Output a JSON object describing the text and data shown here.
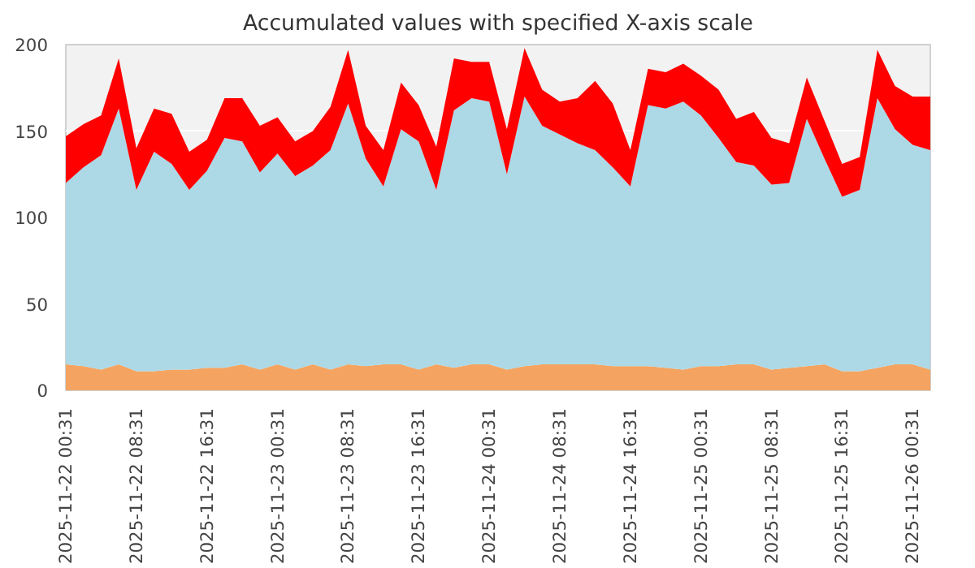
{
  "chart_data": {
    "type": "area",
    "stacked": true,
    "title": "Accumulated values with specified X-axis scale",
    "x": [
      "2025-11-22T00:31",
      "2025-11-22T02:31",
      "2025-11-22T04:31",
      "2025-11-22T06:31",
      "2025-11-22T08:31",
      "2025-11-22T10:31",
      "2025-11-22T12:31",
      "2025-11-22T14:31",
      "2025-11-22T16:31",
      "2025-11-22T18:31",
      "2025-11-22T20:31",
      "2025-11-22T22:31",
      "2025-11-23T00:31",
      "2025-11-23T02:31",
      "2025-11-23T04:31",
      "2025-11-23T06:31",
      "2025-11-23T08:31",
      "2025-11-23T10:31",
      "2025-11-23T12:31",
      "2025-11-23T14:31",
      "2025-11-23T16:31",
      "2025-11-23T18:31",
      "2025-11-23T20:31",
      "2025-11-23T22:31",
      "2025-11-24T00:31",
      "2025-11-24T02:31",
      "2025-11-24T04:31",
      "2025-11-24T06:31",
      "2025-11-24T08:31",
      "2025-11-24T10:31",
      "2025-11-24T12:31",
      "2025-11-24T14:31",
      "2025-11-24T16:31",
      "2025-11-24T18:31",
      "2025-11-24T20:31",
      "2025-11-24T22:31",
      "2025-11-25T00:31",
      "2025-11-25T02:31",
      "2025-11-25T04:31",
      "2025-11-25T06:31",
      "2025-11-25T08:31",
      "2025-11-25T10:31",
      "2025-11-25T12:31",
      "2025-11-25T14:31",
      "2025-11-25T16:31",
      "2025-11-25T18:31",
      "2025-11-25T20:31",
      "2025-11-25T22:31",
      "2025-11-26T00:31",
      "2025-11-26T02:31"
    ],
    "series": [
      {
        "color": "#f4a460",
        "values": [
          15,
          14,
          12,
          15,
          11,
          11,
          12,
          12,
          13,
          13,
          15,
          12,
          15,
          12,
          15,
          12,
          15,
          14,
          15,
          15,
          12,
          15,
          13,
          15,
          15,
          12,
          14,
          15,
          15,
          15,
          15,
          14,
          14,
          14,
          13,
          12,
          14,
          14,
          15,
          15,
          12,
          13,
          14,
          15,
          11,
          11,
          13,
          15,
          15,
          12
        ]
      },
      {
        "color": "#add8e6",
        "values": [
          105,
          115,
          124,
          148,
          105,
          127,
          119,
          104,
          114,
          133,
          129,
          114,
          122,
          112,
          115,
          127,
          151,
          120,
          103,
          136,
          132,
          101,
          149,
          154,
          152,
          113,
          156,
          138,
          133,
          128,
          124,
          115,
          104,
          151,
          150,
          155,
          145,
          132,
          117,
          115,
          107,
          107,
          143,
          119,
          101,
          105,
          156,
          136,
          127,
          127
        ]
      },
      {
        "color": "#ff0000",
        "values": [
          27,
          25,
          23,
          29,
          24,
          25,
          29,
          22,
          18,
          23,
          25,
          27,
          21,
          20,
          20,
          25,
          31,
          19,
          21,
          27,
          21,
          25,
          30,
          21,
          23,
          26,
          28,
          21,
          19,
          26,
          40,
          37,
          21,
          21,
          21,
          22,
          23,
          28,
          25,
          31,
          27,
          23,
          24,
          22,
          19,
          19,
          28,
          25,
          28,
          31
        ]
      }
    ],
    "xlim": [
      "2025-11-22T00:31",
      "2025-11-26T02:31"
    ],
    "xticks": [
      {
        "value": "2025-11-22T00:31",
        "label": "2025-11-22 00:31"
      },
      {
        "value": "2025-11-22T08:31",
        "label": "2025-11-22 08:31"
      },
      {
        "value": "2025-11-22T16:31",
        "label": "2025-11-22 16:31"
      },
      {
        "value": "2025-11-23T00:31",
        "label": "2025-11-23 00:31"
      },
      {
        "value": "2025-11-23T08:31",
        "label": "2025-11-23 08:31"
      },
      {
        "value": "2025-11-23T16:31",
        "label": "2025-11-23 16:31"
      },
      {
        "value": "2025-11-24T00:31",
        "label": "2025-11-24 00:31"
      },
      {
        "value": "2025-11-24T08:31",
        "label": "2025-11-24 08:31"
      },
      {
        "value": "2025-11-24T16:31",
        "label": "2025-11-24 16:31"
      },
      {
        "value": "2025-11-25T00:31",
        "label": "2025-11-25 00:31"
      },
      {
        "value": "2025-11-25T08:31",
        "label": "2025-11-25 08:31"
      },
      {
        "value": "2025-11-25T16:31",
        "label": "2025-11-25 16:31"
      },
      {
        "value": "2025-11-26T00:31",
        "label": "2025-11-26 00:31"
      }
    ],
    "ylim": [
      0,
      200
    ],
    "yticks": [
      0,
      50,
      100,
      150,
      200
    ],
    "grid": "y"
  }
}
